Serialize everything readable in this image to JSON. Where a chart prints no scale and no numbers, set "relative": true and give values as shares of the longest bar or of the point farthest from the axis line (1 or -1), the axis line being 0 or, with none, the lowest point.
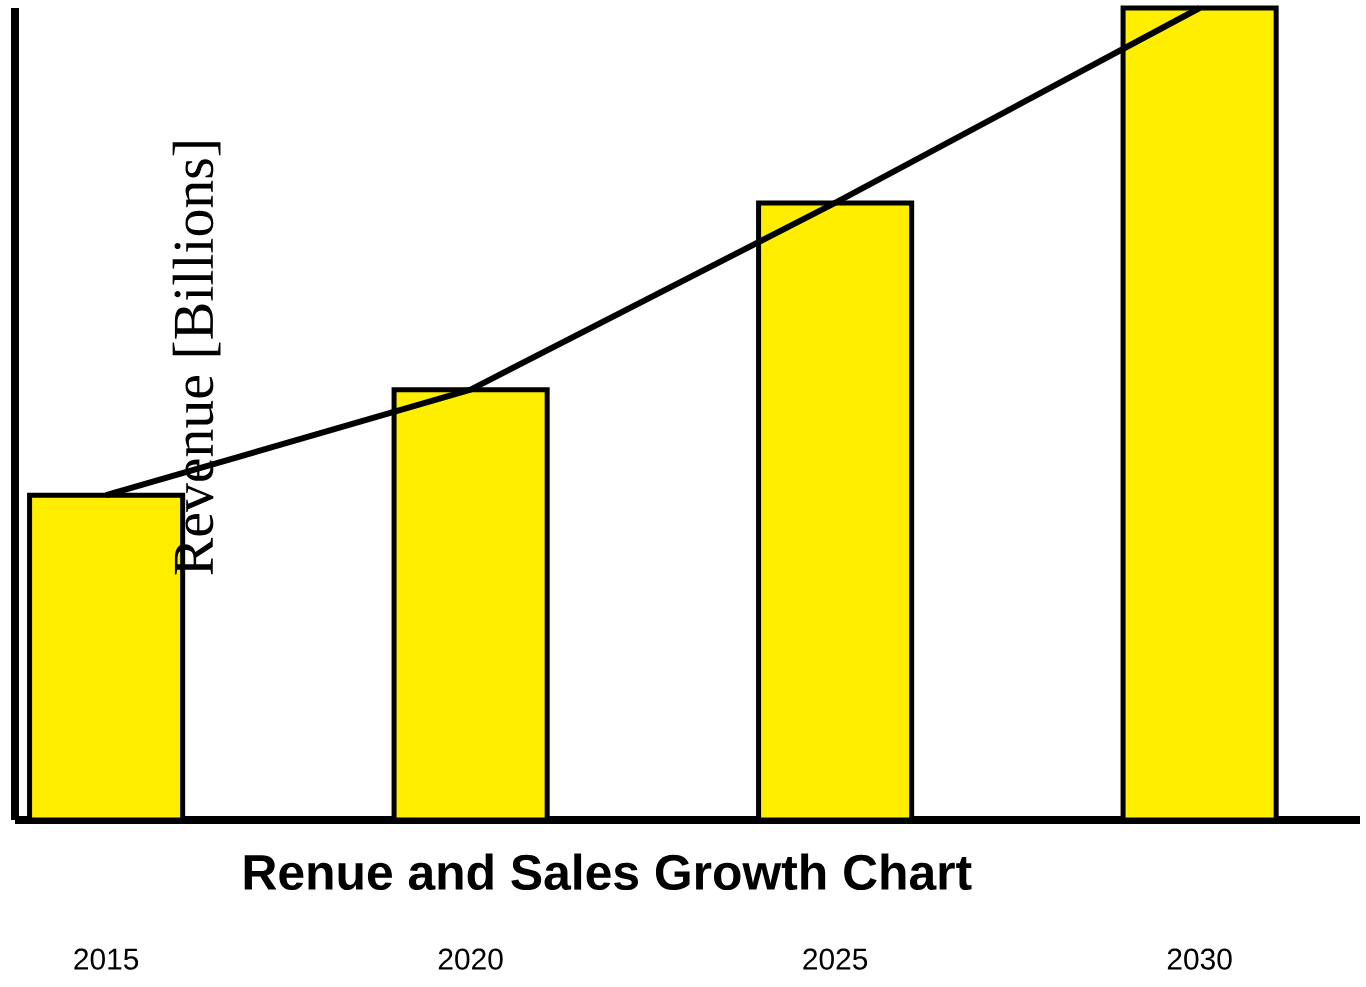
{
  "chart_data": {
    "type": "bar",
    "title": "Renue and Sales Growth Chart",
    "ylabel": "Revenue [Billions]",
    "categories": [
      "2015",
      "2020",
      "2025",
      "2030"
    ],
    "relative": true,
    "marker": "none",
    "line_style": "solid",
    "series": [
      {
        "color": "#ffee00",
        "values": [
          0.4,
          0.53,
          0.76,
          1.0
        ]
      },
      {
        "type": "line",
        "color": "#000000",
        "values": [
          0.4,
          0.53,
          0.76,
          1.0
        ]
      }
    ]
  }
}
